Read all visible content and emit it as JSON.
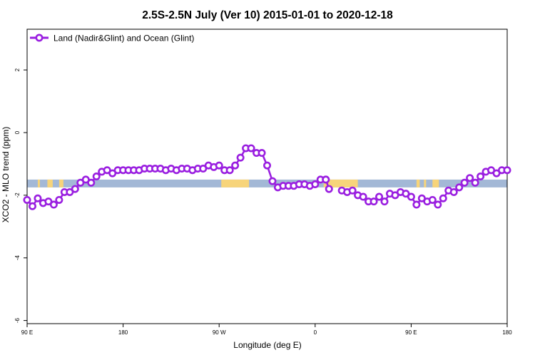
{
  "chart_data": {
    "type": "line",
    "title": "2.5S-2.5N July (Ver 10)   2015-01-01 to 2020-12-18",
    "xlabel": "Longitude (deg E)",
    "ylabel": "XCO2 - MLO trend (ppm)",
    "xlim": [
      90,
      450
    ],
    "ylim": [
      -6.1,
      3.3
    ],
    "x_ticks": [
      {
        "value": 90,
        "label": "90 E"
      },
      {
        "value": 180,
        "label": "180"
      },
      {
        "value": 270,
        "label": "90 W"
      },
      {
        "value": 360,
        "label": "0"
      },
      {
        "value": 450,
        "label": "90 E"
      },
      {
        "value": 540,
        "label": "180"
      }
    ],
    "y_ticks": [
      {
        "value": 2,
        "label": "2"
      },
      {
        "value": 0,
        "label": "0"
      },
      {
        "value": -2,
        "label": "-2"
      },
      {
        "value": -4,
        "label": "-4"
      },
      {
        "value": -6,
        "label": "-6"
      }
    ],
    "legend": {
      "position": "top-left"
    },
    "colors": {
      "series": "#9a1fe0",
      "ocean_band": "#a3b8d6",
      "land_band": "#f7d47a"
    },
    "surface_band": {
      "y_top": -1.5,
      "y_bottom": -1.75,
      "land_segments": [
        [
          100,
          102
        ],
        [
          109,
          114
        ],
        [
          120,
          124
        ],
        [
          272,
          298
        ],
        [
          368,
          400
        ],
        [
          455,
          458
        ],
        [
          462,
          464
        ],
        [
          470,
          476
        ]
      ]
    },
    "series": [
      {
        "name": "Land (Nadir&Glint) and Ocean (Glint)",
        "segments": [
          {
            "x": [
              90,
              95,
              100,
              105,
              110,
              115,
              120,
              125,
              130,
              135,
              140,
              145,
              150,
              155,
              160,
              165,
              170,
              175,
              180,
              185,
              190,
              195,
              200,
              205,
              210,
              215,
              220,
              225,
              230,
              235,
              240,
              245,
              250,
              255,
              260,
              265,
              270,
              275,
              280,
              285,
              290,
              295,
              300,
              305,
              310,
              315,
              320,
              325,
              330,
              335,
              340,
              345,
              350,
              355,
              360,
              365,
              370
            ],
            "y": [
              -2.15,
              -2.35,
              -2.1,
              -2.25,
              -2.2,
              -2.3,
              -2.15,
              -1.9,
              -1.9,
              -1.8,
              -1.6,
              -1.5,
              -1.6,
              -1.4,
              -1.25,
              -1.2,
              -1.3,
              -1.2,
              -1.2,
              -1.2,
              -1.2,
              -1.2,
              -1.15,
              -1.15,
              -1.15,
              -1.15,
              -1.2,
              -1.15,
              -1.2,
              -1.15,
              -1.15,
              -1.2,
              -1.15,
              -1.15,
              -1.05,
              -1.1,
              -1.05,
              -1.2,
              -1.2,
              -1.05,
              -0.8,
              -0.5,
              -0.5,
              -0.65,
              -0.65,
              -1.05,
              -1.55,
              -1.75,
              -1.7,
              -1.7,
              -1.7,
              -1.65,
              -1.65,
              -1.7,
              -1.65,
              -1.5,
              -1.5
            ]
          },
          {
            "x": [
              370,
              373
            ],
            "y": [
              -1.5,
              -1.8
            ]
          },
          {
            "x": [
              385,
              390,
              395,
              400,
              405,
              410,
              415,
              420,
              425,
              430,
              435,
              440,
              445,
              450,
              455,
              460,
              465,
              470,
              475,
              480,
              485,
              490,
              495,
              500,
              505,
              510,
              515,
              520,
              525,
              530,
              535,
              540
            ],
            "y": [
              -1.85,
              -1.9,
              -1.85,
              -2.0,
              -2.05,
              -2.2,
              -2.2,
              -2.05,
              -2.2,
              -1.95,
              -2.0,
              -1.9,
              -1.95,
              -2.05,
              -2.3,
              -2.1,
              -2.2,
              -2.15,
              -2.3,
              -2.1,
              -1.85,
              -1.9,
              -1.75,
              -1.6,
              -1.45,
              -1.6,
              -1.4,
              -1.25,
              -1.2,
              -1.3,
              -1.2,
              -1.2
            ]
          }
        ]
      }
    ]
  }
}
